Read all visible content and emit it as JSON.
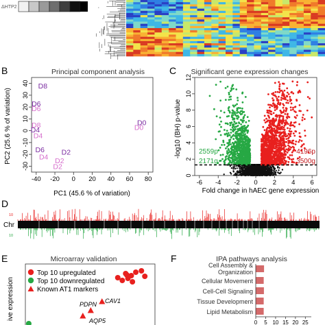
{
  "panelA": {
    "legend_text": "ΔHTP2"
  },
  "panelB": {
    "letter": "B",
    "title": "Principal component analysis",
    "xlabel": "PC1 (45.6 % of variation)",
    "ylabel": "PC2 (25.6 % of variation)"
  },
  "panelC": {
    "letter": "C",
    "title": "Significant gene expression changes",
    "xlabel": "Fold change in hAEC gene expression",
    "ylabel": "-log10 (BH) p-value",
    "count_left_p": "2559p",
    "count_left_g": "2171g",
    "count_right_p": "4196p",
    "count_right_g": "3500g"
  },
  "panelD": {
    "letter": "D",
    "chr_label": "Chr",
    "up_tick": "10",
    "down_tick": "10"
  },
  "panelE": {
    "letter": "E",
    "title": "Microarray validation",
    "ylabel": "ive expression",
    "legend": [
      "Top 10 upregulated",
      "Top 10 downregulated",
      "Known AT1 markers"
    ],
    "gene_labels": [
      "PDPN",
      "CAV1",
      "AQP5"
    ]
  },
  "panelF": {
    "letter": "F",
    "title": "IPA pathways analysis",
    "bar_labels": [
      "Cell Assembly & Organization",
      "Cellular Movement",
      "Cell-Cell Signaling",
      "Tissue Development",
      "Lipid Metabolism"
    ]
  },
  "colors": {
    "up": "#e8201e",
    "down": "#27a844",
    "pca_dark": "#7a2aa0",
    "pca_light": "#d66dcc",
    "ipa_bar": "#d46a6a"
  },
  "chart_data": [
    {
      "panel": "B",
      "type": "scatter",
      "title": "Principal component analysis",
      "xlabel": "PC1 (45.6 % of variation)",
      "ylabel": "PC2 (25.6 % of variation)",
      "xlim": [
        -45,
        85
      ],
      "ylim": [
        -35,
        45
      ],
      "xticks": [
        -40,
        -20,
        0,
        20,
        40,
        60,
        80
      ],
      "yticks": [
        -30,
        -20,
        -10,
        0,
        10,
        20,
        30,
        40
      ],
      "points": [
        {
          "label": "D8",
          "x": -33,
          "y": 38,
          "shade": "dark"
        },
        {
          "label": "D6",
          "x": -40,
          "y": 23,
          "shade": "dark"
        },
        {
          "label": "D6",
          "x": -40,
          "y": 19,
          "shade": "light"
        },
        {
          "label": "D8",
          "x": -40,
          "y": 5,
          "shade": "light"
        },
        {
          "label": "D4",
          "x": -41,
          "y": 1,
          "shade": "dark"
        },
        {
          "label": "D4",
          "x": -38,
          "y": -4,
          "shade": "light"
        },
        {
          "label": "D0",
          "x": 73,
          "y": 7,
          "shade": "dark"
        },
        {
          "label": "D0",
          "x": 70,
          "y": 3,
          "shade": "light"
        },
        {
          "label": "D6",
          "x": -36,
          "y": -16,
          "shade": "dark"
        },
        {
          "label": "D2",
          "x": -8,
          "y": -18,
          "shade": "dark"
        },
        {
          "label": "D4",
          "x": -32,
          "y": -22,
          "shade": "light"
        },
        {
          "label": "D2",
          "x": -15,
          "y": -25,
          "shade": "light"
        },
        {
          "label": "D2",
          "x": -17,
          "y": -30,
          "shade": "light"
        }
      ]
    },
    {
      "panel": "C",
      "type": "scatter",
      "title": "Significant gene expression changes",
      "xlabel": "Fold change in hAEC gene expression",
      "ylabel": "-log10 (BH) p-value",
      "xlim": [
        -6.5,
        6.5
      ],
      "ylim": [
        0,
        12
      ],
      "xticks": [
        -6,
        -4,
        -2,
        0,
        2,
        4,
        6
      ],
      "yticks": [
        0,
        2,
        4,
        6,
        8,
        10,
        12
      ],
      "threshold_y": 1.3,
      "counts": {
        "down_probes": 2559,
        "down_genes": 2171,
        "up_probes": 4196,
        "up_genes": 3500
      }
    },
    {
      "panel": "E",
      "type": "scatter",
      "title": "Microarray validation",
      "series": [
        {
          "name": "Top 10 upregulated",
          "points": [
            [
              8.6,
              7.6
            ],
            [
              9.1,
              7.9
            ],
            [
              9.4,
              8.3
            ],
            [
              8.9,
              8.6
            ],
            [
              9.8,
              8.8
            ],
            [
              10.3,
              9.0
            ],
            [
              9.5,
              7.4
            ],
            [
              10.6,
              8.2
            ],
            [
              8.2,
              8.0
            ],
            [
              9.0,
              8.4
            ]
          ]
        },
        {
          "name": "Top 10 downregulated",
          "points": [
            [
              0.3,
              1.3
            ]
          ]
        },
        {
          "name": "Known AT1 markers",
          "points": [
            [
              6.8,
              4.5
            ],
            [
              5.1,
              2.4
            ],
            [
              5.8,
              3.2
            ]
          ]
        }
      ]
    },
    {
      "panel": "F",
      "type": "bar",
      "title": "IPA pathways analysis",
      "orientation": "horizontal",
      "categories": [
        "Cell Assembly & Organization",
        "Cellular Movement",
        "Cell-Cell Signaling",
        "Tissue Development",
        "Lipid Metabolism"
      ],
      "values": [
        4.2,
        4.0,
        4.1,
        4.0,
        4.0
      ],
      "xticks": [
        0,
        5,
        10,
        15,
        20,
        25
      ],
      "xlim": [
        0,
        28
      ]
    }
  ]
}
